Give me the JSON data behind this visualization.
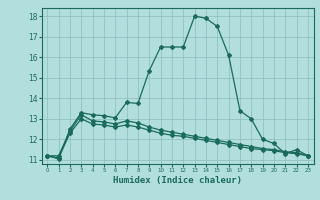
{
  "xlabel": "Humidex (Indice chaleur)",
  "background_color": "#b2dede",
  "grid_color": "#8bbcbc",
  "line_color": "#1a6b5a",
  "xlim": [
    -0.5,
    23.5
  ],
  "ylim": [
    10.8,
    18.4
  ],
  "yticks": [
    11,
    12,
    13,
    14,
    15,
    16,
    17,
    18
  ],
  "xticks": [
    0,
    1,
    2,
    3,
    4,
    5,
    6,
    7,
    8,
    9,
    10,
    11,
    12,
    13,
    14,
    15,
    16,
    17,
    18,
    19,
    20,
    21,
    22,
    23
  ],
  "line1_x": [
    0,
    1,
    2,
    3,
    4,
    5,
    6,
    7,
    8,
    9,
    10,
    11,
    12,
    13,
    14,
    15,
    16,
    17,
    18,
    19,
    20,
    21,
    22,
    23
  ],
  "line1_y": [
    11.2,
    11.05,
    12.5,
    13.3,
    13.2,
    13.15,
    13.05,
    13.8,
    13.75,
    15.35,
    16.5,
    16.5,
    16.5,
    18.0,
    17.9,
    17.5,
    16.1,
    13.4,
    13.0,
    12.0,
    11.8,
    11.3,
    11.5,
    11.2
  ],
  "line2_x": [
    0,
    1,
    2,
    3,
    4,
    5,
    6,
    7,
    8,
    9,
    10,
    11,
    12,
    13,
    14,
    15,
    16,
    17,
    18,
    19,
    20,
    21,
    22,
    23
  ],
  "line2_y": [
    11.2,
    11.2,
    12.4,
    13.2,
    12.9,
    12.85,
    12.75,
    12.9,
    12.8,
    12.6,
    12.45,
    12.35,
    12.25,
    12.15,
    12.05,
    11.95,
    11.85,
    11.75,
    11.65,
    11.55,
    11.5,
    11.4,
    11.35,
    11.2
  ],
  "line3_x": [
    0,
    1,
    2,
    3,
    4,
    5,
    6,
    7,
    8,
    9,
    10,
    11,
    12,
    13,
    14,
    15,
    16,
    17,
    18,
    19,
    20,
    21,
    22,
    23
  ],
  "line3_y": [
    11.2,
    11.1,
    12.3,
    13.0,
    12.75,
    12.7,
    12.6,
    12.7,
    12.6,
    12.45,
    12.3,
    12.2,
    12.15,
    12.05,
    11.95,
    11.85,
    11.75,
    11.65,
    11.55,
    11.5,
    11.45,
    11.35,
    11.3,
    11.2
  ]
}
